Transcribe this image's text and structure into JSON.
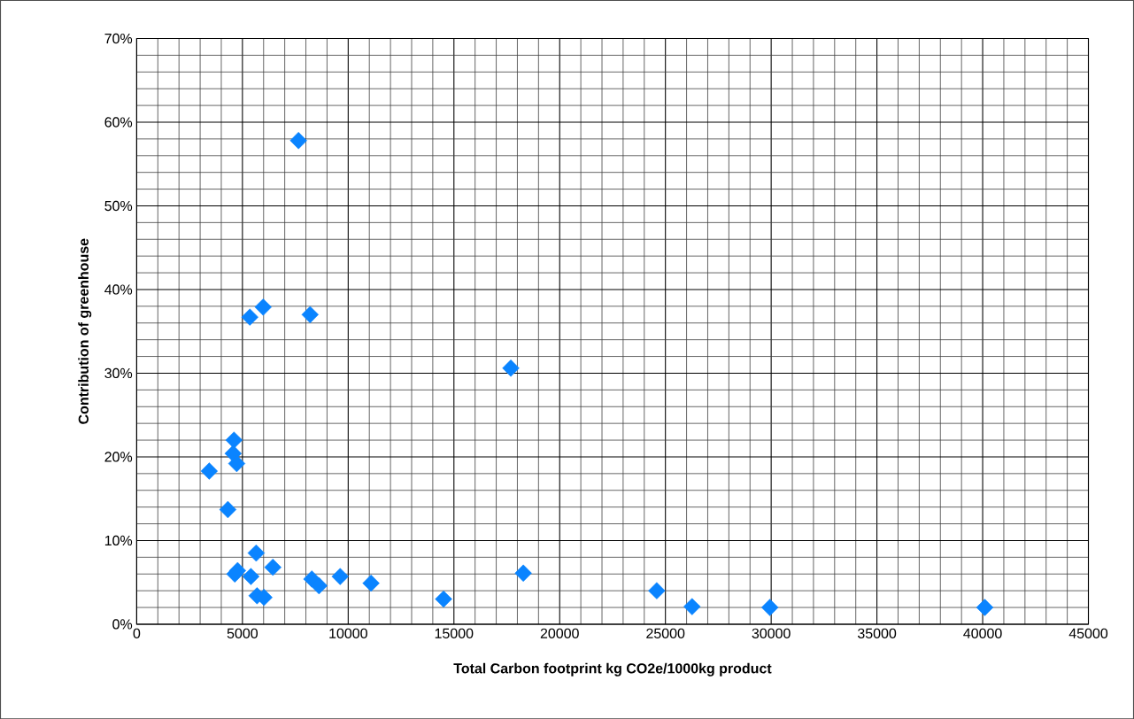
{
  "chart_data": {
    "type": "scatter",
    "xlabel": "Total Carbon footprint kg CO2e/1000kg product",
    "ylabel": "Contribution of greenhouse",
    "x": [
      7650,
      5350,
      5980,
      8200,
      17690,
      4600,
      4560,
      4730,
      3430,
      4310,
      5650,
      4770,
      4640,
      5400,
      6440,
      5690,
      6020,
      8280,
      8620,
      9620,
      11080,
      14510,
      18280,
      24590,
      26260,
      29940,
      40100
    ],
    "values": [
      57.8,
      36.7,
      37.9,
      37.0,
      30.6,
      22.0,
      20.4,
      19.2,
      18.3,
      13.7,
      8.5,
      6.4,
      6.0,
      5.7,
      6.8,
      3.4,
      3.2,
      5.4,
      4.6,
      5.7,
      4.9,
      3.0,
      6.1,
      4.0,
      2.1,
      2.0,
      2.0
    ],
    "color": "#0a84ff",
    "marker": "diamond",
    "grid": true,
    "xlim": [
      0,
      45000
    ],
    "xticks": [
      0,
      5000,
      10000,
      15000,
      20000,
      25000,
      30000,
      35000,
      40000,
      45000
    ],
    "ylim": [
      0,
      70
    ],
    "yticks": [
      {
        "value": 0,
        "label": "0%"
      },
      {
        "value": 10,
        "label": "10%"
      },
      {
        "value": 20,
        "label": "20%"
      },
      {
        "value": 30,
        "label": "30%"
      },
      {
        "value": 40,
        "label": "40%"
      },
      {
        "value": 50,
        "label": "50%"
      },
      {
        "value": 60,
        "label": "60%"
      },
      {
        "value": 70,
        "label": "70%"
      }
    ]
  }
}
